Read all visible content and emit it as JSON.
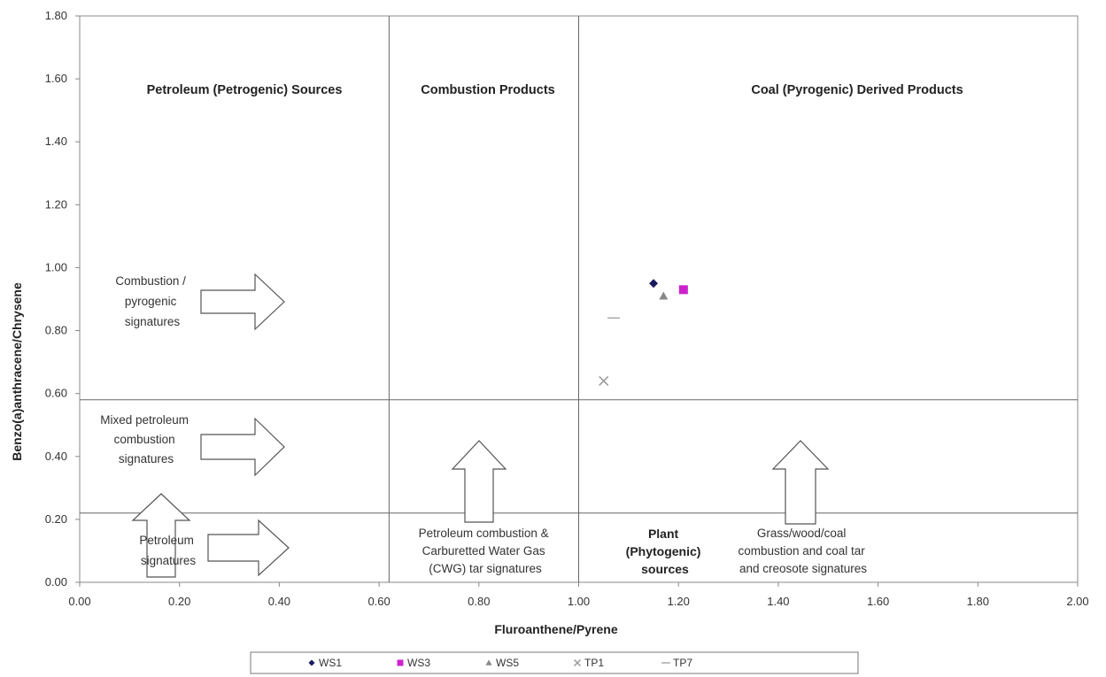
{
  "chart_data": {
    "type": "scatter",
    "xlabel": "Fluroanthene/Pyrene",
    "ylabel": "Benzo(a)anthracene/Chrysene",
    "xlim": [
      0,
      2
    ],
    "ylim": [
      0,
      1.8
    ],
    "x_ticks": [
      "0.00",
      "0.20",
      "0.40",
      "0.60",
      "0.80",
      "1.00",
      "1.20",
      "1.40",
      "1.60",
      "1.80",
      "2.00"
    ],
    "y_ticks": [
      "0.00",
      "0.20",
      "0.40",
      "0.60",
      "0.80",
      "1.00",
      "1.20",
      "1.40",
      "1.60",
      "1.80"
    ],
    "grid": false,
    "dividers": {
      "x": [
        0.62,
        1.0
      ],
      "y": [
        0.58,
        0.22
      ]
    },
    "region_titles": [
      "Petroleum (Petrogenic) Sources",
      "Combustion Products",
      "Coal (Pyrogenic) Derived Products"
    ],
    "annotations": {
      "combustion_signatures": [
        "Combustion /",
        "pyrogenic",
        "signatures"
      ],
      "mixed_signatures": [
        "Mixed petroleum",
        "combustion",
        "signatures"
      ],
      "petroleum_signatures": [
        "Petroleum",
        "signatures"
      ],
      "cwg_signatures": [
        "Petroleum combustion &",
        "Carburetted Water Gas",
        "(CWG) tar signatures"
      ],
      "plant_sources": [
        "Plant",
        "(Phytogenic)",
        "sources"
      ],
      "coal_tar_signatures": [
        "Grass/wood/coal",
        "combustion and coal tar",
        "and creosote signatures"
      ]
    },
    "legend_position": "bottom",
    "series": [
      {
        "name": "WS1",
        "marker": "diamond",
        "color": "#1a1a5e",
        "points": [
          {
            "x": 1.15,
            "y": 0.95
          }
        ]
      },
      {
        "name": "WS3",
        "marker": "square",
        "color": "#cc22cc",
        "points": [
          {
            "x": 1.21,
            "y": 0.93
          }
        ]
      },
      {
        "name": "WS5",
        "marker": "triangle",
        "color": "#888888",
        "points": [
          {
            "x": 1.17,
            "y": 0.91
          }
        ]
      },
      {
        "name": "TP1",
        "marker": "x",
        "color": "#999999",
        "points": [
          {
            "x": 1.05,
            "y": 0.64
          }
        ]
      },
      {
        "name": "TP7",
        "marker": "dash",
        "color": "#aaaaaa",
        "points": [
          {
            "x": 1.07,
            "y": 0.84
          }
        ]
      }
    ]
  }
}
